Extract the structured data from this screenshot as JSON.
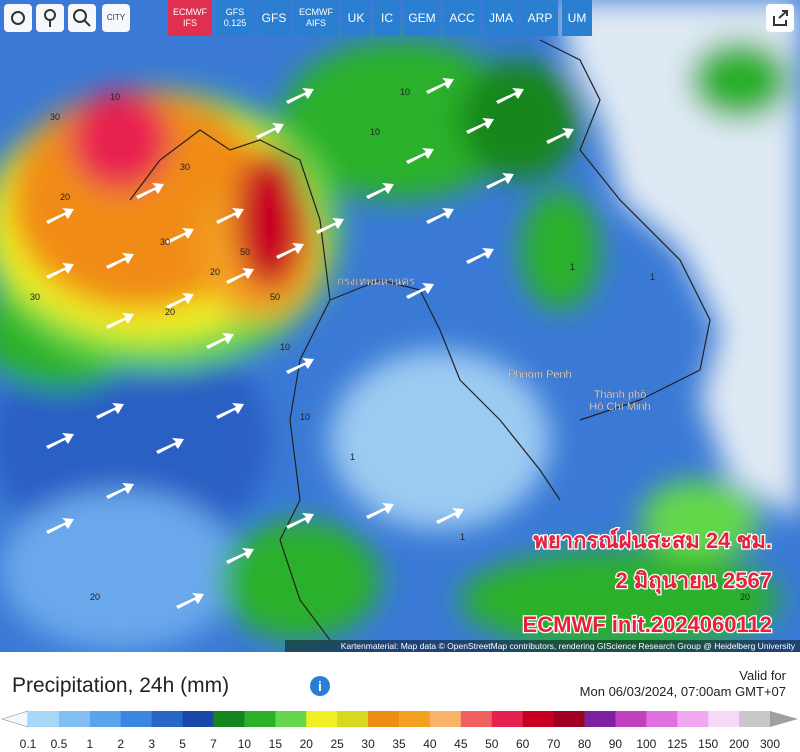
{
  "toolbar": {
    "city": "CITY",
    "models": [
      {
        "lines": [
          "ECMWF",
          "IFS"
        ],
        "active": true
      },
      {
        "lines": [
          "GFS",
          "0.125"
        ]
      },
      {
        "lines": [
          "GFS"
        ]
      },
      {
        "lines": [
          "ECMWF",
          "AIFS"
        ]
      },
      {
        "lines": [
          "UK"
        ]
      },
      {
        "lines": [
          "IC"
        ]
      },
      {
        "lines": [
          "GEM"
        ]
      },
      {
        "lines": [
          "ACC"
        ]
      },
      {
        "lines": [
          "JMA"
        ]
      },
      {
        "lines": [
          "ARP"
        ]
      },
      {
        "lines": [
          "UM"
        ]
      }
    ]
  },
  "map": {
    "places": [
      {
        "lines": [
          "กรุงเทพมหานคร"
        ]
      },
      {
        "lines": [
          "Phnom Penh"
        ]
      },
      {
        "lines": [
          "Thành phố",
          "Hồ Chí Minh"
        ]
      }
    ],
    "value_labels": [
      "30",
      "20",
      "10",
      "30",
      "30",
      "50",
      "50",
      "20",
      "30",
      "20",
      "10",
      "10",
      "1",
      "1",
      "1",
      "20",
      "10",
      "10",
      "1",
      "20"
    ],
    "overlay": [
      "พยากรณ์ฝนสะสม 24 ชม.",
      "2 มิถุนายน 2567",
      "ECMWF init.2024060112"
    ],
    "attribution": "Kartenmaterial: Map data © OpenStreetMap contributors, rendering GIScience Research Group @ Heidelberg University"
  },
  "legend": {
    "title": "Precipitation, 24h (mm)",
    "info": "i",
    "valid_label": "Valid for",
    "valid_time": "Mon 06/03/2024, 07:00am GMT+07",
    "scale_labels": [
      "0.1",
      "0.5",
      "1",
      "2",
      "3",
      "5",
      "7",
      "10",
      "15",
      "20",
      "25",
      "30",
      "35",
      "40",
      "45",
      "50",
      "60",
      "70",
      "80",
      "90",
      "100",
      "125",
      "150",
      "200",
      "300"
    ],
    "colors": [
      "#a8d8f8",
      "#82c0f4",
      "#5aa4ec",
      "#3b86e0",
      "#2866c8",
      "#1b47a8",
      "#15861f",
      "#2bb02a",
      "#64d84a",
      "#f0f024",
      "#d8d820",
      "#f08c14",
      "#f4a020",
      "#f8b468",
      "#f06060",
      "#e82050",
      "#c80020",
      "#a00020",
      "#8020a0",
      "#c040c0",
      "#e070e0",
      "#f0a8f0",
      "#f8d8f8",
      "#c8c8c8"
    ],
    "low_color": "#f4f8fc",
    "high_color": "#a0a0a0"
  }
}
